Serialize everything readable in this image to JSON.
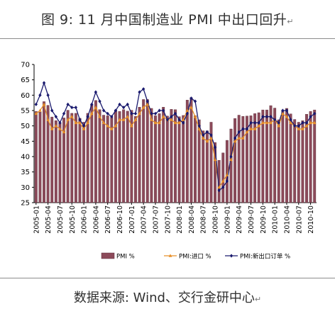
{
  "title": "图 9:  11 月中国制造业 PMI 中出口回升",
  "title_mark": "↵",
  "source": "数据来源:  Wind、交行金研中心",
  "source_mark": "↵",
  "chart_data": {
    "type": "bar",
    "title": "",
    "xlabel": "",
    "ylabel": "",
    "ylim": [
      25,
      70
    ],
    "yticks": [
      25,
      30,
      35,
      40,
      45,
      50,
      55,
      60,
      65,
      70
    ],
    "grid": false,
    "legend_position": "bottom",
    "x": [
      "2005-01",
      "2005-02",
      "2005-03",
      "2005-04",
      "2005-05",
      "2005-06",
      "2005-07",
      "2005-08",
      "2005-09",
      "2005-10",
      "2005-11",
      "2005-12",
      "2006-01",
      "2006-02",
      "2006-03",
      "2006-04",
      "2006-05",
      "2006-06",
      "2006-07",
      "2006-08",
      "2006-09",
      "2006-10",
      "2006-11",
      "2006-12",
      "2007-01",
      "2007-02",
      "2007-03",
      "2007-04",
      "2007-05",
      "2007-06",
      "2007-07",
      "2007-08",
      "2007-09",
      "2007-10",
      "2007-11",
      "2007-12",
      "2008-01",
      "2008-02",
      "2008-03",
      "2008-04",
      "2008-05",
      "2008-06",
      "2008-07",
      "2008-08",
      "2008-09",
      "2008-10",
      "2008-11",
      "2008-12",
      "2009-01",
      "2009-02",
      "2009-03",
      "2009-04",
      "2009-05",
      "2009-06",
      "2009-07",
      "2009-08",
      "2009-09",
      "2009-10",
      "2009-11",
      "2009-12",
      "2010-01",
      "2010-02",
      "2010-03",
      "2010-04",
      "2010-05",
      "2010-06",
      "2010-07",
      "2010-08",
      "2010-09",
      "2010-10",
      "2010-11"
    ],
    "x_tick_labels": [
      "2005-01",
      "2005-04",
      "2005-07",
      "2005-10",
      "2006-01",
      "2006-04",
      "2006-07",
      "2006-10",
      "2007-01",
      "2007-04",
      "2007-07",
      "2007-10",
      "2008-01",
      "2008-04",
      "2008-07",
      "2008-10",
      "2009-01",
      "2009-04",
      "2009-07",
      "2009-10",
      "2010-01",
      "2010-04",
      "2010-07",
      "2010-10"
    ],
    "series": [
      {
        "name": "PMI %",
        "kind": "bar",
        "color": "#8c4a5a",
        "values": [
          54.7,
          54.5,
          57.9,
          56.7,
          52.9,
          51.7,
          51.1,
          52.6,
          55.1,
          54.1,
          54.1,
          52.5,
          51.2,
          54.1,
          56.9,
          58.3,
          55.3,
          53.5,
          53.3,
          52.8,
          55.2,
          54.7,
          55.3,
          54.8,
          55.1,
          53.1,
          56.1,
          58.6,
          58.6,
          55.7,
          53.3,
          54.0,
          56.1,
          53.2,
          55.4,
          55.3,
          53.0,
          53.4,
          58.4,
          59.2,
          53.3,
          52.0,
          48.4,
          48.4,
          51.2,
          44.6,
          38.8,
          41.2,
          45.3,
          49.0,
          52.4,
          53.5,
          53.1,
          53.2,
          53.3,
          54.0,
          54.3,
          55.2,
          55.2,
          56.6,
          55.8,
          52.0,
          55.1,
          55.7,
          53.9,
          52.1,
          51.2,
          51.7,
          53.8,
          54.7,
          55.2
        ]
      },
      {
        "name": "PMI:进口 %",
        "kind": "line",
        "color": "#e8902a",
        "marker": "triangle",
        "values": [
          54,
          55,
          57,
          52,
          49,
          50,
          49,
          48,
          52,
          53,
          51,
          51,
          49,
          51,
          54,
          56,
          53,
          51,
          50,
          49,
          50,
          52,
          52,
          53,
          50,
          52,
          54,
          56,
          57,
          52,
          51,
          51,
          53,
          52,
          52,
          51,
          51,
          52,
          55,
          56,
          53,
          49,
          46,
          45,
          46,
          39,
          30,
          32,
          34,
          39,
          45,
          46,
          46,
          48,
          49,
          49,
          50,
          51,
          51,
          51,
          52,
          50,
          54,
          53,
          51,
          50,
          49,
          49,
          50,
          51,
          51
        ]
      },
      {
        "name": "PMI:新出口订单 %",
        "kind": "line",
        "color": "#1a1a6e",
        "marker": "diamond",
        "values": [
          57,
          60,
          64,
          60,
          55,
          53,
          51,
          54,
          57,
          56,
          56,
          52,
          50,
          53,
          57,
          61,
          58,
          55,
          54,
          53,
          55,
          57,
          56,
          57,
          54,
          54,
          61,
          62,
          58,
          54,
          54,
          55,
          55,
          52,
          53,
          54,
          52,
          51,
          54,
          59,
          58,
          50,
          47,
          48,
          47,
          43,
          29,
          30,
          32,
          40,
          46,
          48,
          49,
          49,
          51,
          51,
          51,
          53,
          53,
          53,
          52,
          51,
          55,
          55,
          52,
          50,
          50,
          51,
          51,
          53,
          54
        ]
      }
    ]
  }
}
